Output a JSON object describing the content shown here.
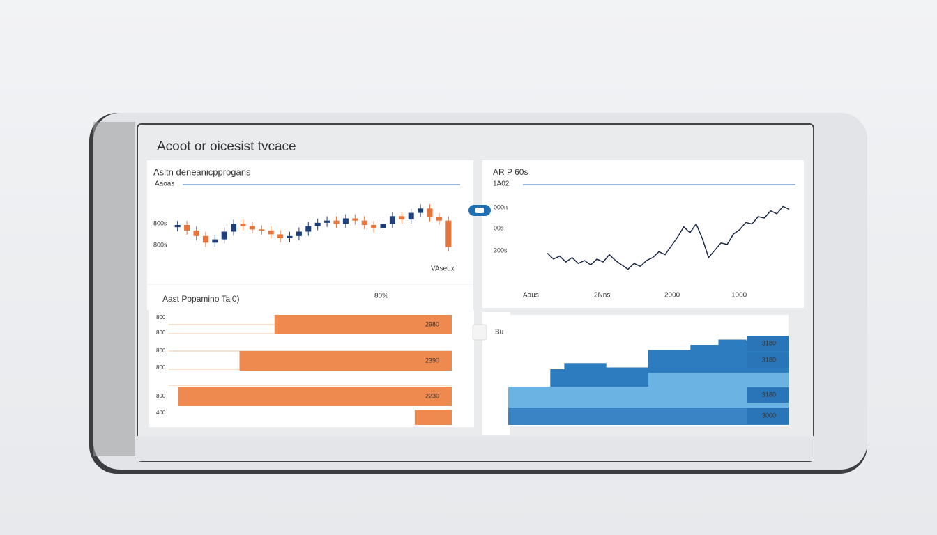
{
  "header": {
    "title": "Acoot or oicesist tvcace"
  },
  "chart_data": [
    {
      "type": "candlestick",
      "title": "Asltn deneanicpprogans",
      "subtitle": "Aaoas",
      "note": "VAseux",
      "ytick_labels": [
        "800s",
        "800s"
      ],
      "ylim": [
        760,
        880
      ],
      "up_color": "#1f3f7a",
      "down_color": "#e8743b",
      "open": [
        828,
        832,
        822,
        812,
        800,
        806,
        820,
        834,
        830,
        824,
        822,
        815,
        808,
        812,
        820,
        830,
        836,
        840,
        834,
        844,
        840,
        832,
        826,
        834,
        848,
        842,
        854,
        862,
        846,
        840
      ],
      "close": [
        832,
        822,
        812,
        800,
        806,
        820,
        834,
        830,
        824,
        822,
        815,
        808,
        812,
        820,
        830,
        836,
        840,
        834,
        844,
        840,
        832,
        826,
        834,
        848,
        842,
        854,
        862,
        846,
        840,
        792
      ]
    },
    {
      "type": "line",
      "title": "AR P 60s",
      "subtitle": "1A02",
      "color": "#1b2a4a",
      "ytick_labels": [
        "000n",
        "00s",
        "300s"
      ],
      "xtick_labels": [
        "Aaus",
        "2Nns",
        "2000",
        "1000"
      ],
      "ylim": [
        0,
        100
      ],
      "values": [
        30,
        22,
        26,
        18,
        24,
        16,
        20,
        14,
        22,
        18,
        28,
        20,
        14,
        8,
        16,
        12,
        20,
        24,
        32,
        28,
        40,
        52,
        66,
        58,
        70,
        50,
        24,
        34,
        44,
        42,
        56,
        62,
        72,
        70,
        80,
        78,
        88,
        84,
        94,
        90
      ]
    },
    {
      "type": "hbar",
      "title": "Aast Popamino Tal0)",
      "note": "80%",
      "color": "#ee8a4f",
      "ytick_labels": [
        "800",
        "800",
        "800",
        "800",
        "800",
        "400"
      ],
      "xlim": [
        0,
        420
      ],
      "values": [
        263,
        315,
        406,
        55
      ],
      "bar_labels": [
        "2980",
        "2390",
        "2230",
        null
      ]
    },
    {
      "type": "area",
      "label": "Bu",
      "ylim": [
        0,
        100
      ],
      "series": [
        {
          "color": "#2e7cc0",
          "values": [
            44,
            44,
            44,
            64,
            71,
            71,
            71,
            66,
            66,
            66,
            86,
            86,
            86,
            92,
            92,
            98,
            98,
            96,
            94,
            92
          ]
        },
        {
          "color": "#6bb3e3",
          "values": [
            44,
            44,
            44,
            44,
            44,
            44,
            44,
            44,
            44,
            44,
            60,
            60,
            60,
            60,
            60,
            60,
            60,
            60,
            60,
            60
          ]
        },
        {
          "color": "#3a84c6",
          "values": [
            20,
            20,
            20,
            20,
            20,
            20,
            20,
            20,
            20,
            20,
            20,
            20,
            20,
            20,
            20,
            20,
            20,
            20,
            20,
            20
          ]
        }
      ],
      "band_labels": [
        "3180",
        "3180",
        "3180",
        "3000"
      ]
    }
  ]
}
